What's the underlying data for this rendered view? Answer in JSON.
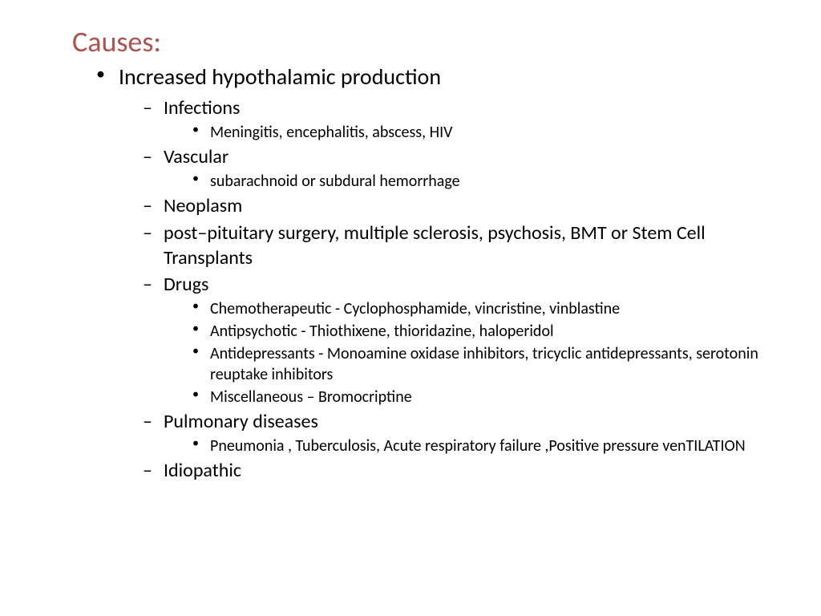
{
  "title": "Causes:",
  "title_color": "#b05050",
  "level1": [
    {
      "text": "Increased hypothalamic production",
      "children": [
        {
          "text": "Infections",
          "children": [
            {
              "text": "Meningitis, encephalitis, abscess, HIV"
            }
          ]
        },
        {
          "text": "Vascular",
          "children": [
            {
              "text": "subarachnoid or subdural hemorrhage"
            }
          ]
        },
        {
          "text": "Neoplasm"
        },
        {
          "text": "post–pituitary surgery, multiple sclerosis, psychosis, BMT or Stem Cell Transplants"
        },
        {
          "text": "Drugs",
          "children": [
            {
              "text": "Chemotherapeutic - Cyclophosphamide, vincristine, vinblastine"
            },
            {
              "text": "Antipsychotic - Thiothixene, thioridazine, haloperidol"
            },
            {
              "text": "Antidepressants - Monoamine oxidase inhibitors, tricyclic antidepressants, serotonin reuptake inhibitors"
            },
            {
              "text": "Miscellaneous – Bromocriptine"
            }
          ]
        },
        {
          "text": "Pulmonary diseases",
          "children": [
            {
              "text": "Pneumonia , Tuberculosis, Acute respiratory failure ,Positive pressure venTILATION"
            }
          ]
        },
        {
          "text": "Idiopathic"
        }
      ]
    }
  ]
}
